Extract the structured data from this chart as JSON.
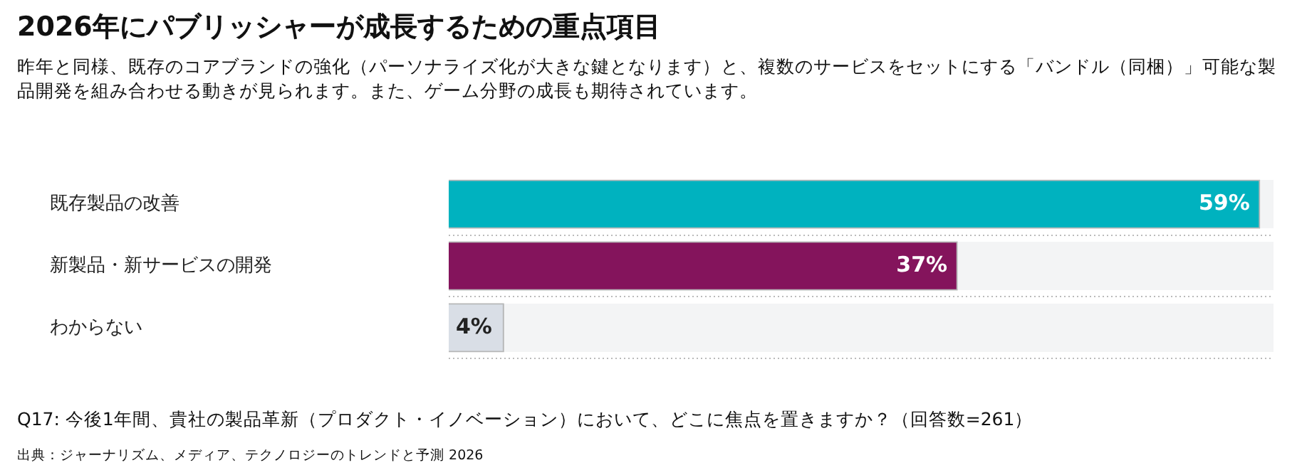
{
  "chart_data": {
    "type": "bar",
    "orientation": "horizontal",
    "title": "2026年にパブリッシャーが成長するための重点項目",
    "subtitle": "昨年と同様、既存のコアブランドの強化（パーソナライズ化が大きな鍵となります）と、複数のサービスをセットにする「バンドル（同梱）」可能な製品開発を組み合わせる動きが見られます。また、ゲーム分野の成長も期待されています。",
    "categories": [
      "既存製品の改善",
      "新製品・新サービスの開発",
      "わからない"
    ],
    "values": [
      59,
      37,
      4
    ],
    "colors": [
      "#00b2bf",
      "#84145c",
      "#d9dee6"
    ],
    "value_labels": [
      "59%",
      "37%",
      "4%"
    ],
    "grid": "y",
    "tick_labels": "y",
    "annotations": [
      "Q17: 今後1年間、貴社の製品革新（プロダクト・イノベーション）において、どこに焦点を置きますか？（回答数=261）",
      "出典：ジャーナリズム、メディア、テクノロジーのトレンドと予測 2026"
    ]
  }
}
